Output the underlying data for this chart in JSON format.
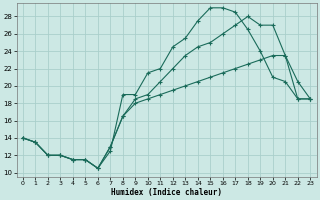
{
  "xlabel": "Humidex (Indice chaleur)",
  "bg_color": "#cce8e4",
  "grid_color": "#aacfcb",
  "line_color": "#1a6b5a",
  "xlim": [
    -0.5,
    23.5
  ],
  "ylim": [
    9.5,
    29.5
  ],
  "xticks": [
    0,
    1,
    2,
    3,
    4,
    5,
    6,
    7,
    8,
    9,
    10,
    11,
    12,
    13,
    14,
    15,
    16,
    17,
    18,
    19,
    20,
    21,
    22,
    23
  ],
  "yticks": [
    10,
    12,
    14,
    16,
    18,
    20,
    22,
    24,
    26,
    28
  ],
  "line1_x": [
    0,
    1,
    2,
    3,
    4,
    5,
    6,
    7,
    8,
    9,
    10,
    11,
    12,
    13,
    14,
    15,
    16,
    17,
    18,
    19,
    20,
    21,
    22,
    23
  ],
  "line1_y": [
    14,
    13.5,
    12,
    12,
    11.5,
    11.5,
    10.5,
    12.5,
    19,
    19,
    21.5,
    22,
    24.5,
    25.5,
    27.5,
    29,
    29,
    28.5,
    26.5,
    24,
    21,
    20.5,
    18.5,
    18.5
  ],
  "line2_x": [
    0,
    1,
    2,
    3,
    4,
    5,
    6,
    7,
    8,
    9,
    10,
    11,
    12,
    13,
    14,
    15,
    16,
    17,
    18,
    19,
    20,
    21,
    22,
    23
  ],
  "line2_y": [
    14,
    13.5,
    12,
    12,
    11.5,
    11.5,
    10.5,
    13,
    16.5,
    18.5,
    19,
    20.5,
    22,
    23.5,
    24.5,
    25,
    26,
    27,
    28,
    27,
    27,
    23.5,
    20.5,
    18.5
  ],
  "line3_x": [
    0,
    1,
    2,
    3,
    4,
    5,
    6,
    7,
    8,
    9,
    10,
    11,
    12,
    13,
    14,
    15,
    16,
    17,
    18,
    19,
    20,
    21,
    22,
    23
  ],
  "line3_y": [
    14,
    13.5,
    12,
    12,
    11.5,
    11.5,
    10.5,
    13,
    16.5,
    18,
    18.5,
    19,
    19.5,
    20,
    20.5,
    21,
    21.5,
    22,
    22.5,
    23,
    23.5,
    23.5,
    18.5,
    18.5
  ]
}
